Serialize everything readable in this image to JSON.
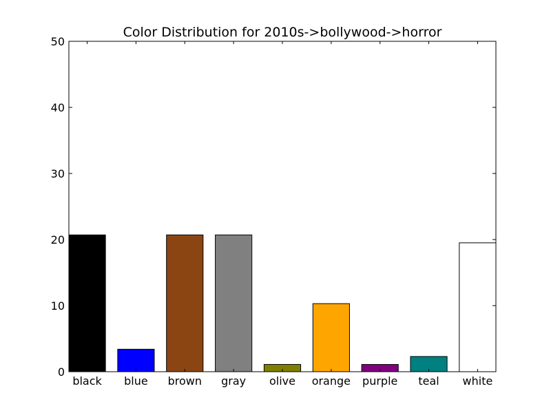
{
  "chart_data": {
    "type": "bar",
    "title": "Color Distribution for 2010s->bollywood->horror",
    "xlabel": "",
    "ylabel": "",
    "categories": [
      "black",
      "blue",
      "brown",
      "gray",
      "olive",
      "orange",
      "purple",
      "teal",
      "white"
    ],
    "values": [
      20.7,
      3.4,
      20.7,
      20.7,
      1.1,
      10.3,
      1.1,
      2.3,
      19.5
    ],
    "colors": [
      "#000000",
      "#0000ff",
      "#8b4513",
      "#808080",
      "#808000",
      "#ffa500",
      "#800080",
      "#008080",
      "#ffffff"
    ],
    "ylim": [
      0,
      50
    ],
    "yticks": [
      0,
      10,
      20,
      30,
      40,
      50
    ],
    "grid": false,
    "legend": "none"
  }
}
